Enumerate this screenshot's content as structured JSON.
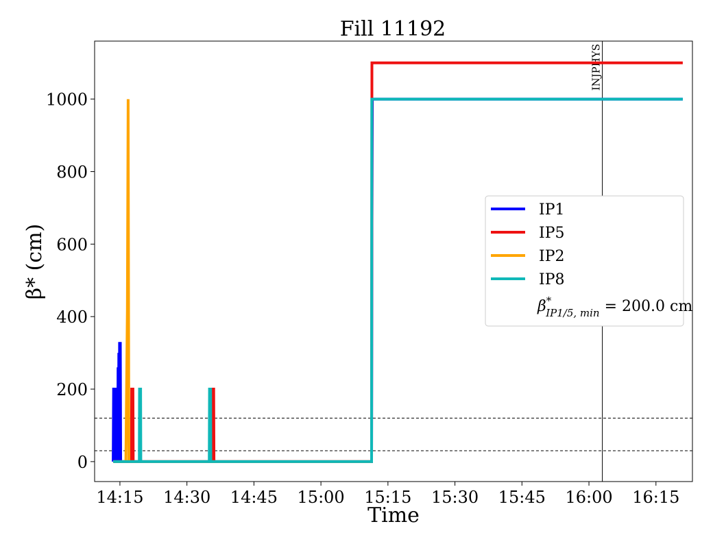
{
  "chart_data": {
    "type": "line",
    "title": "Fill 11192",
    "xlabel": "Time",
    "ylabel": "β* (cm)",
    "x_tick_labels": [
      "14:15",
      "14:30",
      "14:45",
      "15:00",
      "15:15",
      "15:30",
      "15:45",
      "16:00",
      "16:15"
    ],
    "y_tick_labels": [
      "0",
      "200",
      "400",
      "600",
      "800",
      "1000"
    ],
    "xlim": [
      "14:09:20",
      "16:23:10"
    ],
    "ylim": [
      -55,
      1160
    ],
    "grid": false,
    "legend_position": "center-right",
    "series": [
      {
        "name": "IP1",
        "color": "#0000ff",
        "points": [
          [
            "14:13:30",
            0
          ],
          [
            "14:13:35",
            200
          ],
          [
            "14:13:45",
            200
          ],
          [
            "14:13:50",
            0
          ],
          [
            "14:13:55",
            200
          ],
          [
            "14:14:05",
            200
          ],
          [
            "14:14:10",
            0
          ],
          [
            "14:14:15",
            200
          ],
          [
            "14:14:20",
            0
          ],
          [
            "14:14:25",
            200
          ],
          [
            "14:14:30",
            0
          ],
          [
            "14:14:35",
            260
          ],
          [
            "14:14:40",
            0
          ],
          [
            "14:14:45",
            300
          ],
          [
            "14:14:50",
            0
          ],
          [
            "14:14:55",
            330
          ],
          [
            "14:15:00",
            0
          ],
          [
            "14:15:05",
            330
          ],
          [
            "14:15:10",
            0
          ],
          [
            "15:11:20",
            0
          ],
          [
            "15:11:25",
            660
          ],
          [
            "15:11:30",
            1000
          ],
          [
            "16:21:00",
            1000
          ]
        ]
      },
      {
        "name": "IP5",
        "color": "#ee1111",
        "points": [
          [
            "14:13:30",
            0
          ],
          [
            "14:17:35",
            0
          ],
          [
            "14:17:38",
            200
          ],
          [
            "14:17:55",
            200
          ],
          [
            "14:17:58",
            0
          ],
          [
            "14:35:40",
            0
          ],
          [
            "14:35:43",
            200
          ],
          [
            "14:36:00",
            200
          ],
          [
            "14:36:03",
            0
          ],
          [
            "15:11:20",
            0
          ],
          [
            "15:11:25",
            1100
          ],
          [
            "16:21:00",
            1100
          ]
        ]
      },
      {
        "name": "IP2",
        "color": "#ffa500",
        "points": [
          [
            "14:13:30",
            0
          ],
          [
            "14:16:20",
            0
          ],
          [
            "14:16:40",
            420
          ],
          [
            "14:16:50",
            1000
          ],
          [
            "14:17:00",
            0
          ],
          [
            "15:11:20",
            0
          ]
        ]
      },
      {
        "name": "IP8",
        "color": "#10b8b8",
        "points": [
          [
            "14:13:30",
            0
          ],
          [
            "14:19:20",
            0
          ],
          [
            "14:19:23",
            200
          ],
          [
            "14:19:38",
            200
          ],
          [
            "14:19:41",
            0
          ],
          [
            "14:35:00",
            0
          ],
          [
            "14:35:03",
            200
          ],
          [
            "14:35:18",
            200
          ],
          [
            "14:35:21",
            0
          ],
          [
            "15:11:20",
            0
          ],
          [
            "15:11:23",
            1000
          ],
          [
            "16:21:00",
            1000
          ]
        ]
      }
    ],
    "legend_extra": {
      "beta_symbol": "β",
      "beta_sup": "*",
      "beta_sub": "IP1/5, min",
      "text": " = 200.0 cm"
    },
    "horizontal_lines": [
      {
        "y": 120,
        "style": "dashed",
        "color": "#000000"
      },
      {
        "y": 30,
        "style": "dashed",
        "color": "#000000"
      }
    ],
    "vertical_lines": [
      {
        "x": "16:03:00",
        "label": "INJPHYS",
        "color": "#000000"
      }
    ]
  }
}
